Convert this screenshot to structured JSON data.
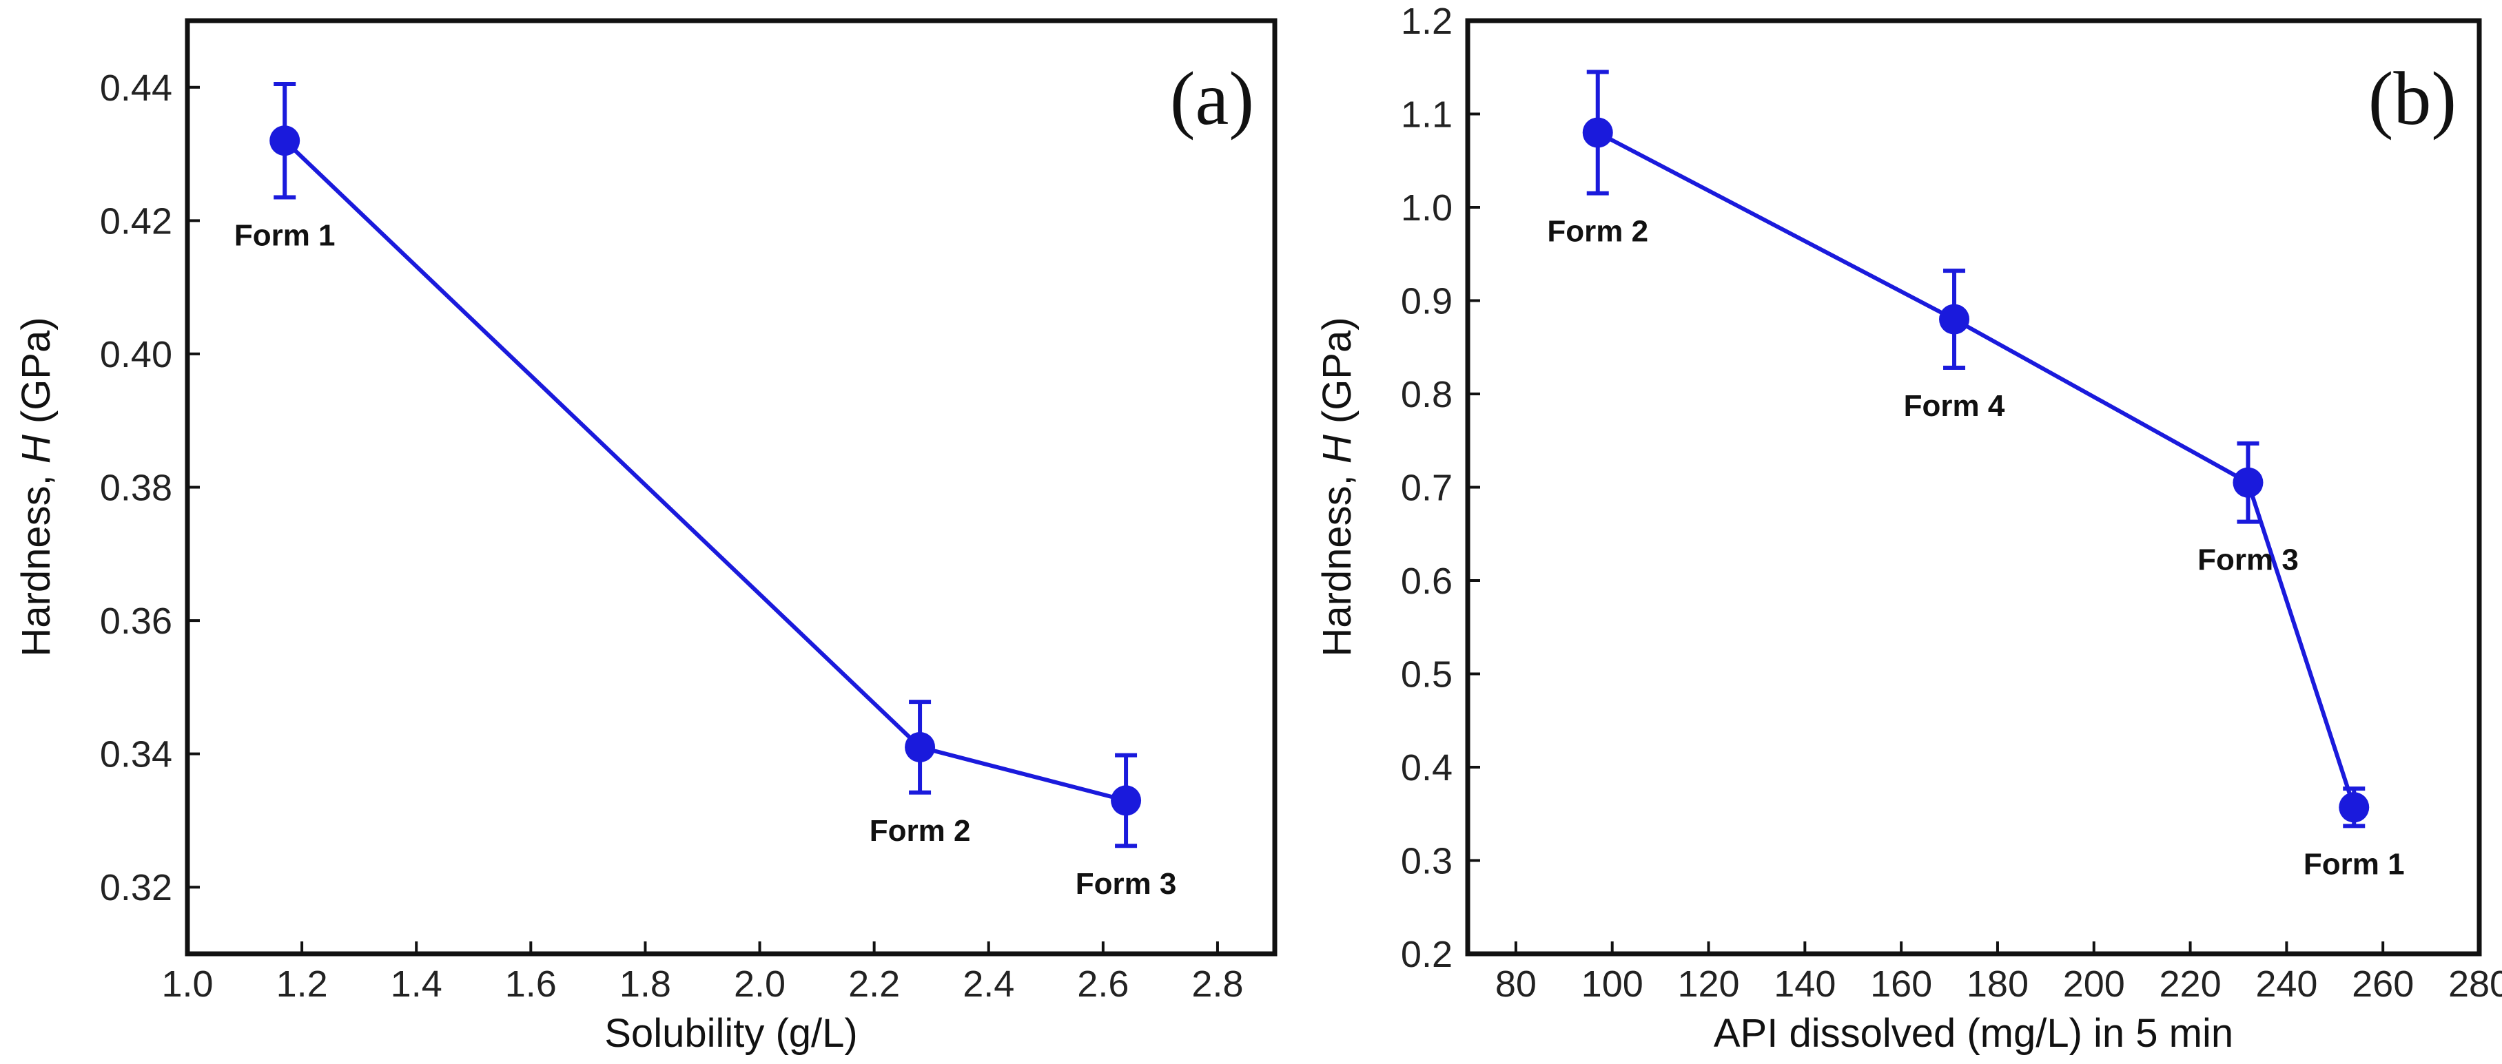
{
  "chart_data": [
    {
      "type": "line",
      "panel_label": "(a)",
      "xlabel": "Solubility (g/L)",
      "ylabel_prefix": "Hardness, ",
      "ylabel_var": "H",
      "ylabel_suffix": " (GPa)",
      "xlim": [
        1.0,
        2.9
      ],
      "ylim": [
        0.31,
        0.45
      ],
      "xticks": [
        1.0,
        1.2,
        1.4,
        1.6,
        1.8,
        2.0,
        2.2,
        2.4,
        2.6,
        2.8
      ],
      "xtick_labels": [
        "1.0",
        "1.2",
        "1.4",
        "1.6",
        "1.8",
        "2.0",
        "2.2",
        "2.4",
        "2.6",
        "2.8"
      ],
      "yticks": [
        0.32,
        0.34,
        0.36,
        0.38,
        0.4,
        0.42,
        0.44
      ],
      "ytick_labels": [
        "0.32",
        "0.34",
        "0.36",
        "0.38",
        "0.40",
        "0.42",
        "0.44"
      ],
      "series_color": "#1a1adc",
      "points": [
        {
          "label": "Form 1",
          "x": 1.17,
          "y": 0.432,
          "err": 0.0085,
          "label_pos": "below"
        },
        {
          "label": "Form 2",
          "x": 2.28,
          "y": 0.341,
          "err": 0.0068,
          "label_pos": "below"
        },
        {
          "label": "Form 3",
          "x": 2.64,
          "y": 0.333,
          "err": 0.0068,
          "label_pos": "below"
        }
      ]
    },
    {
      "type": "line",
      "panel_label": "(b)",
      "xlabel": "API dissolved (mg/L) in 5 min",
      "ylabel_prefix": "Hardness, ",
      "ylabel_var": "H",
      "ylabel_suffix": " (GPa)",
      "xlim": [
        70,
        280
      ],
      "ylim": [
        0.2,
        1.2
      ],
      "xticks": [
        80,
        100,
        120,
        140,
        160,
        180,
        200,
        220,
        240,
        260,
        280
      ],
      "xtick_labels": [
        "80",
        "100",
        "120",
        "140",
        "160",
        "180",
        "200",
        "220",
        "240",
        "260",
        "280"
      ],
      "yticks": [
        0.2,
        0.3,
        0.4,
        0.5,
        0.6,
        0.7,
        0.8,
        0.9,
        1.0,
        1.1,
        1.2
      ],
      "ytick_labels": [
        "0.2",
        "0.3",
        "0.4",
        "0.5",
        "0.6",
        "0.7",
        "0.8",
        "0.9",
        "1.0",
        "1.1",
        "1.2"
      ],
      "series_color": "#1a1adc",
      "points": [
        {
          "label": "Form 2",
          "x": 97,
          "y": 1.08,
          "err": 0.065,
          "label_pos": "below"
        },
        {
          "label": "Form 4",
          "x": 171,
          "y": 0.88,
          "err": 0.052,
          "label_pos": "below"
        },
        {
          "label": "Form 3",
          "x": 232,
          "y": 0.705,
          "err": 0.042,
          "label_pos": "below"
        },
        {
          "label": "Form 1",
          "x": 254,
          "y": 0.357,
          "err": 0.02,
          "label_pos": "below"
        }
      ]
    }
  ]
}
